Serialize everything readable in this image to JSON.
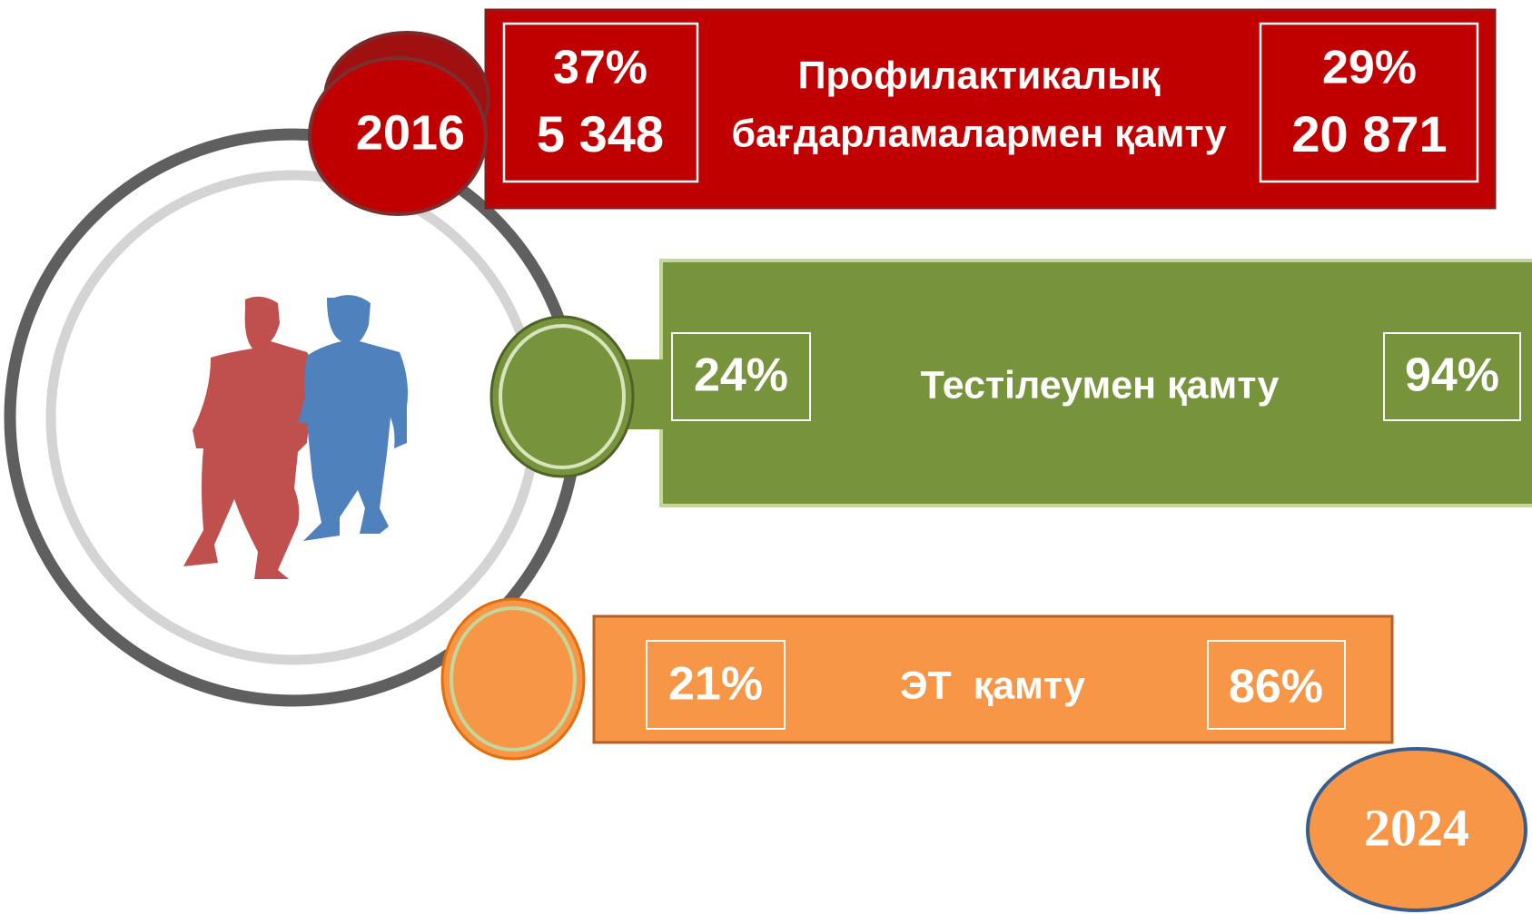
{
  "year_start": "2016",
  "year_end": "2024",
  "rows": [
    {
      "label_line1": "Профилактикалық",
      "label_line2": "бағдарламалармен қамту",
      "start_percent": "37%",
      "start_count": "5 348",
      "end_percent": "29%",
      "end_count": "20 871"
    },
    {
      "label": "Тестілеумен қамту",
      "start_percent": "24%",
      "end_percent": "94%"
    },
    {
      "label": "ЭТ  қамту",
      "start_percent": "21%",
      "end_percent": "86%"
    }
  ]
}
